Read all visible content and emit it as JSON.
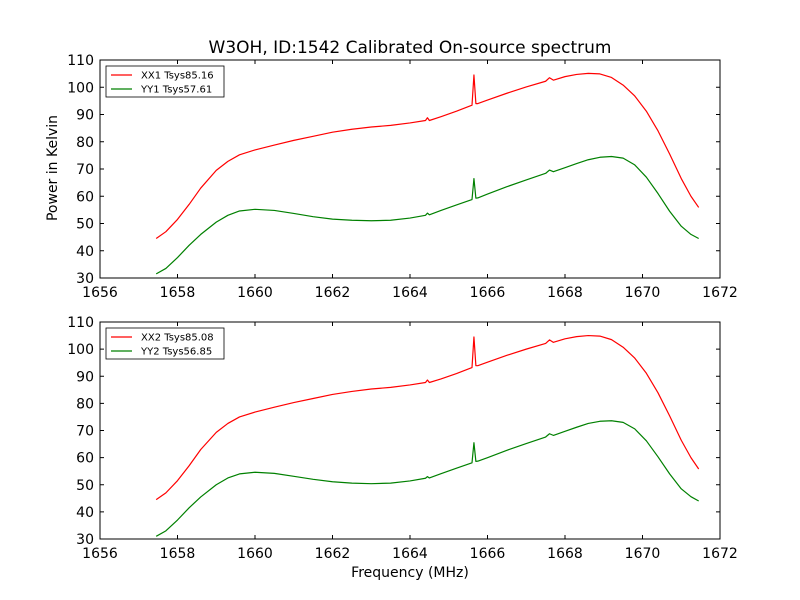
{
  "figure": {
    "title": "W3OH, ID:1542 Calibrated On-source spectrum",
    "xlabel": "Frequency (MHz)",
    "ylabel": "Power in Kelvin"
  },
  "chart_data": [
    {
      "type": "line",
      "title": "W3OH, ID:1542 Calibrated On-source spectrum",
      "xlabel": "",
      "ylabel": "Power in Kelvin",
      "xlim": [
        1656,
        1672
      ],
      "ylim": [
        30,
        110
      ],
      "xticks": [
        1656,
        1658,
        1660,
        1662,
        1664,
        1666,
        1668,
        1670,
        1672
      ],
      "yticks": [
        30,
        40,
        50,
        60,
        70,
        80,
        90,
        100,
        110
      ],
      "grid": false,
      "legend_position": "top-left",
      "series": [
        {
          "name": "XX1 Tsys85.16",
          "color": "#ff0000",
          "x": [
            1657.45,
            1657.7,
            1658.0,
            1658.3,
            1658.6,
            1659.0,
            1659.3,
            1659.6,
            1660.0,
            1660.5,
            1661.0,
            1661.5,
            1662.0,
            1662.5,
            1663.0,
            1663.5,
            1664.0,
            1664.4,
            1664.45,
            1664.5,
            1664.8,
            1665.2,
            1665.6,
            1665.65,
            1665.7,
            1665.75,
            1666.0,
            1666.5,
            1667.0,
            1667.5,
            1667.6,
            1667.7,
            1668.0,
            1668.3,
            1668.6,
            1668.9,
            1669.2,
            1669.5,
            1669.8,
            1670.1,
            1670.4,
            1670.7,
            1671.0,
            1671.25,
            1671.45
          ],
          "y": [
            44.5,
            47.0,
            51.5,
            57.0,
            63.0,
            69.5,
            72.8,
            75.2,
            77.0,
            78.8,
            80.5,
            82.0,
            83.5,
            84.6,
            85.4,
            86.0,
            86.9,
            87.8,
            88.8,
            87.8,
            89.2,
            91.2,
            93.4,
            104.5,
            94.0,
            94.0,
            95.3,
            97.8,
            100.1,
            102.2,
            103.5,
            102.6,
            103.9,
            104.7,
            105.1,
            104.9,
            103.6,
            100.8,
            96.8,
            91.2,
            84.0,
            75.5,
            66.5,
            60.0,
            55.9
          ]
        },
        {
          "name": "YY1 Tsys57.61",
          "color": "#008000",
          "x": [
            1657.45,
            1657.7,
            1658.0,
            1658.3,
            1658.6,
            1659.0,
            1659.3,
            1659.6,
            1660.0,
            1660.5,
            1661.0,
            1661.5,
            1662.0,
            1662.5,
            1663.0,
            1663.5,
            1664.0,
            1664.4,
            1664.45,
            1664.5,
            1664.8,
            1665.2,
            1665.6,
            1665.65,
            1665.7,
            1665.75,
            1666.0,
            1666.5,
            1667.0,
            1667.5,
            1667.6,
            1667.7,
            1668.0,
            1668.3,
            1668.6,
            1668.9,
            1669.2,
            1669.5,
            1669.8,
            1670.1,
            1670.4,
            1670.7,
            1671.0,
            1671.25,
            1671.45
          ],
          "y": [
            31.5,
            33.5,
            37.5,
            42.0,
            46.0,
            50.5,
            53.0,
            54.6,
            55.2,
            54.8,
            53.7,
            52.5,
            51.6,
            51.2,
            51.0,
            51.2,
            52.0,
            53.0,
            53.8,
            53.2,
            54.8,
            56.8,
            58.8,
            66.5,
            59.3,
            59.4,
            60.8,
            63.5,
            66.0,
            68.4,
            69.6,
            69.0,
            70.5,
            72.0,
            73.4,
            74.3,
            74.6,
            74.0,
            71.5,
            67.0,
            61.0,
            54.5,
            49.0,
            46.0,
            44.5
          ]
        }
      ]
    },
    {
      "type": "line",
      "title": "",
      "xlabel": "Frequency (MHz)",
      "ylabel": "",
      "xlim": [
        1656,
        1672
      ],
      "ylim": [
        30,
        110
      ],
      "xticks": [
        1656,
        1658,
        1660,
        1662,
        1664,
        1666,
        1668,
        1670,
        1672
      ],
      "yticks": [
        30,
        40,
        50,
        60,
        70,
        80,
        90,
        100,
        110
      ],
      "grid": false,
      "legend_position": "top-left",
      "series": [
        {
          "name": "XX2 Tsys85.08",
          "color": "#ff0000",
          "x": [
            1657.45,
            1657.7,
            1658.0,
            1658.3,
            1658.6,
            1659.0,
            1659.3,
            1659.6,
            1660.0,
            1660.5,
            1661.0,
            1661.5,
            1662.0,
            1662.5,
            1663.0,
            1663.5,
            1664.0,
            1664.4,
            1664.45,
            1664.5,
            1664.8,
            1665.2,
            1665.6,
            1665.65,
            1665.7,
            1665.75,
            1666.0,
            1666.5,
            1667.0,
            1667.5,
            1667.6,
            1667.7,
            1668.0,
            1668.3,
            1668.6,
            1668.9,
            1669.2,
            1669.5,
            1669.8,
            1670.1,
            1670.4,
            1670.7,
            1671.0,
            1671.25,
            1671.45
          ],
          "y": [
            44.5,
            47.0,
            51.5,
            57.0,
            63.0,
            69.3,
            72.6,
            75.0,
            76.8,
            78.6,
            80.3,
            81.8,
            83.3,
            84.4,
            85.3,
            85.9,
            86.8,
            87.7,
            88.6,
            87.7,
            89.0,
            91.0,
            93.2,
            104.5,
            93.9,
            93.9,
            95.2,
            97.7,
            100.0,
            102.1,
            103.4,
            102.5,
            103.8,
            104.6,
            105.0,
            104.8,
            103.5,
            100.7,
            96.7,
            91.1,
            83.9,
            75.4,
            66.4,
            60.0,
            55.8
          ]
        },
        {
          "name": "YY2 Tsys56.85",
          "color": "#008000",
          "x": [
            1657.45,
            1657.7,
            1658.0,
            1658.3,
            1658.6,
            1659.0,
            1659.3,
            1659.6,
            1660.0,
            1660.5,
            1661.0,
            1661.5,
            1662.0,
            1662.5,
            1663.0,
            1663.5,
            1664.0,
            1664.4,
            1664.45,
            1664.5,
            1664.8,
            1665.2,
            1665.6,
            1665.65,
            1665.7,
            1665.75,
            1666.0,
            1666.5,
            1667.0,
            1667.5,
            1667.6,
            1667.7,
            1668.0,
            1668.3,
            1668.6,
            1668.9,
            1669.2,
            1669.5,
            1669.8,
            1670.1,
            1670.4,
            1670.7,
            1671.0,
            1671.25,
            1671.45
          ],
          "y": [
            31.0,
            33.0,
            37.0,
            41.5,
            45.5,
            50.0,
            52.5,
            54.0,
            54.6,
            54.2,
            53.1,
            52.0,
            51.1,
            50.6,
            50.4,
            50.6,
            51.4,
            52.4,
            53.0,
            52.5,
            54.1,
            56.1,
            58.1,
            65.5,
            58.6,
            58.7,
            60.0,
            62.7,
            65.2,
            67.6,
            68.8,
            68.2,
            69.7,
            71.2,
            72.6,
            73.4,
            73.6,
            73.0,
            70.6,
            66.2,
            60.3,
            54.0,
            48.5,
            45.6,
            44.0
          ]
        }
      ]
    }
  ]
}
